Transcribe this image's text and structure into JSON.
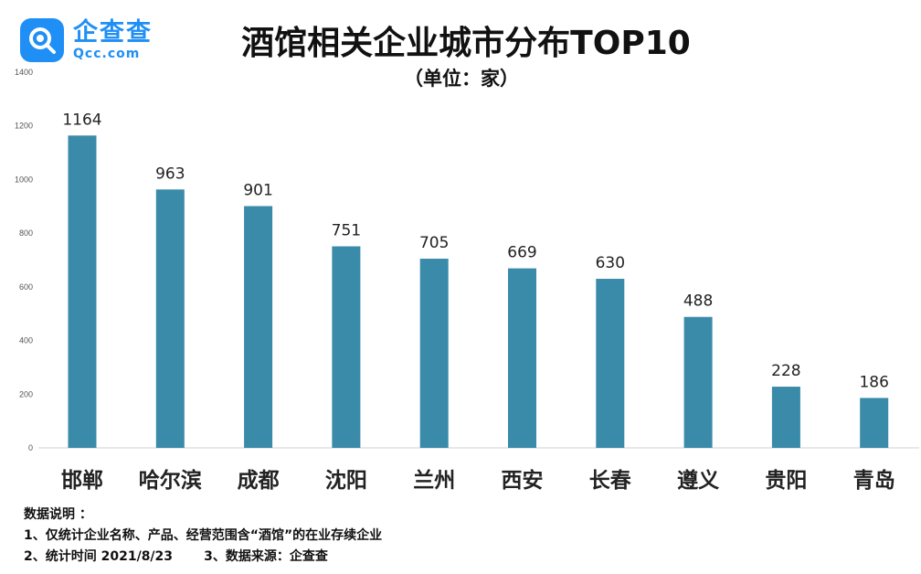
{
  "header": {
    "logo_cn": "企查查",
    "logo_en": "Qcc.com",
    "title": "酒馆相关企业城市分布TOP10",
    "subtitle": "（单位：家）"
  },
  "notes": {
    "heading": "数据说明 ：",
    "line1": "1、仅统计企业名称、产品、经营范围含“酒馆”的在业存续企业",
    "line2": "2、统计时间 2021/8/23       3、数据来源：企查查"
  },
  "colors": {
    "bar": "#3a8aa9",
    "brand": "#1f8ff5"
  },
  "chart_data": {
    "type": "bar",
    "title": "酒馆相关企业城市分布TOP10",
    "unit": "（单位：家）",
    "categories": [
      "邯郸",
      "哈尔滨",
      "成都",
      "沈阳",
      "兰州",
      "西安",
      "长春",
      "遵义",
      "贵阳",
      "青岛"
    ],
    "values": [
      1164,
      963,
      901,
      751,
      705,
      669,
      630,
      488,
      228,
      186
    ],
    "yticks": [
      0,
      200,
      400,
      600,
      800,
      1000,
      1200,
      1400
    ],
    "ylim": [
      0,
      1400
    ],
    "grid": false,
    "legend": "none"
  }
}
